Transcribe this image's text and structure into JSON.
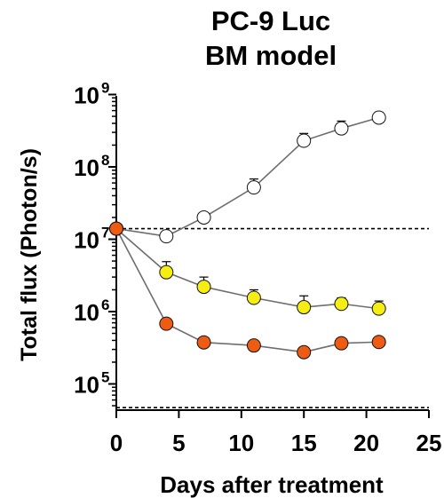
{
  "chart_data": {
    "type": "line",
    "title_lines": [
      "PC-9 Luc",
      "BM model"
    ],
    "xlabel": "Days after treatment",
    "ylabel": "Total flux (Photon/s)",
    "x_ticks": [
      0,
      5,
      10,
      15,
      20,
      25
    ],
    "y_ticks": [
      {
        "base": "10",
        "exp": "5",
        "value": 100000
      },
      {
        "base": "10",
        "exp": "6",
        "value": 1000000
      },
      {
        "base": "10",
        "exp": "7",
        "value": 10000000
      },
      {
        "base": "10",
        "exp": "8",
        "value": 100000000
      },
      {
        "base": "10",
        "exp": "9",
        "value": 1000000000
      }
    ],
    "xlim": [
      0,
      25
    ],
    "ylim": [
      45000,
      1000000000
    ],
    "y_scale": "log",
    "reference_lines": [
      {
        "y": 14000000,
        "style": "dashed"
      },
      {
        "y": 47000,
        "style": "dashed"
      }
    ],
    "series": [
      {
        "fill": "#ffffff",
        "x": [
          0,
          4,
          7,
          11,
          15,
          18,
          21
        ],
        "y": [
          14000000,
          11000000,
          20000000,
          52000000,
          230000000,
          340000000,
          480000000
        ],
        "err_upper": [
          14000000,
          11000000,
          20000000,
          68000000,
          290000000,
          430000000,
          570000000
        ]
      },
      {
        "fill": "#f6ee12",
        "x": [
          0,
          4,
          7,
          11,
          15,
          18,
          21
        ],
        "y": [
          14000000,
          3500000,
          2200000,
          1550000,
          1150000,
          1280000,
          1100000
        ],
        "err_upper": [
          14000000,
          4900000,
          3000000,
          2000000,
          1650000,
          1550000,
          1400000
        ]
      },
      {
        "fill": "#ee5b12",
        "x": [
          0,
          4,
          7,
          11,
          15,
          18,
          21
        ],
        "y": [
          14000000,
          680000,
          375000,
          340000,
          275000,
          365000,
          380000
        ],
        "err_upper": [
          14000000,
          680000,
          375000,
          340000,
          320000,
          400000,
          410000
        ]
      }
    ]
  }
}
